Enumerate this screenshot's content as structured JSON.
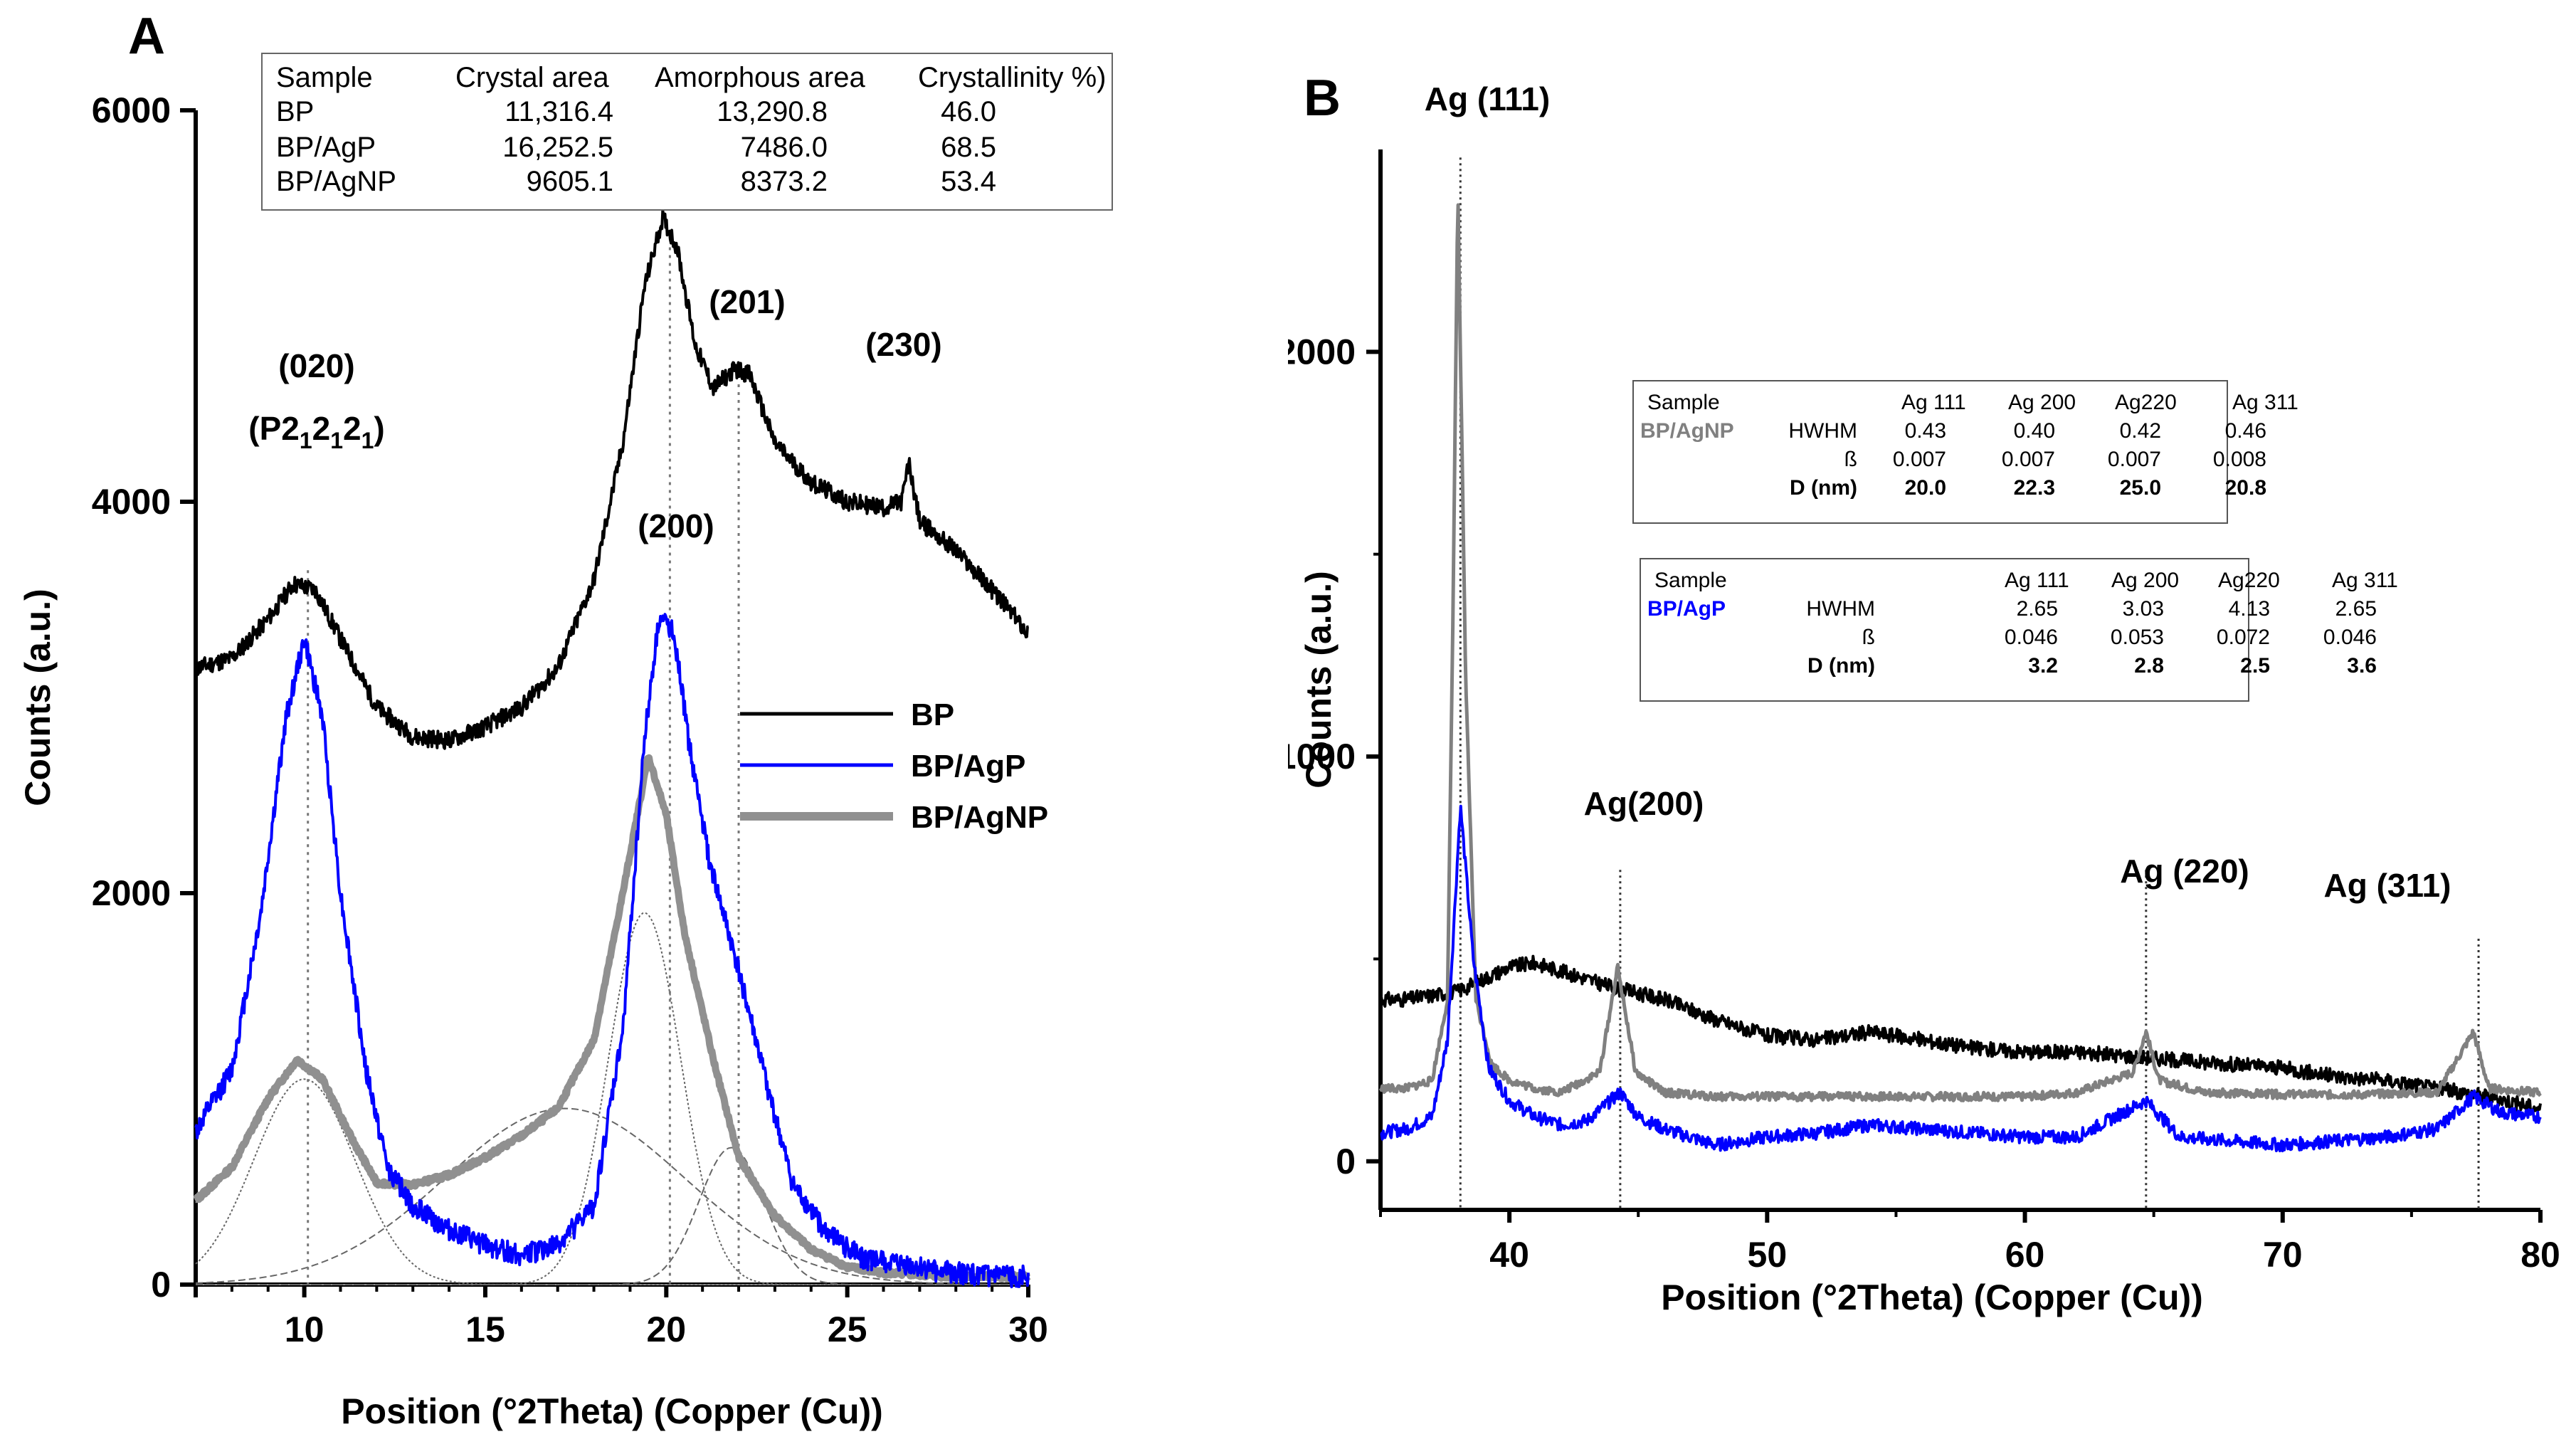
{
  "chart_data": [
    {
      "type": "line",
      "panel": "A",
      "xlabel": "Position (°2Theta) (Copper (Cu))",
      "ylabel": "Counts (a.u.)",
      "xlim": [
        7,
        30
      ],
      "ylim": [
        0,
        6000
      ],
      "x_ticks": [
        "10",
        "15",
        "20",
        "25",
        "30"
      ],
      "y_ticks": [
        "0",
        "2000",
        "4000",
        "6000"
      ],
      "series": [
        {
          "name": "BP",
          "color": "#000000",
          "x": [
            7,
            8,
            9,
            9.7,
            10.3,
            11,
            12,
            13,
            14,
            15,
            16,
            17,
            18,
            18.8,
            19.4,
            19.9,
            20.3,
            20.8,
            21.3,
            21.9,
            22.3,
            23,
            24,
            25,
            26,
            26.5,
            26.7,
            27,
            28,
            29,
            30
          ],
          "y": [
            3150,
            3200,
            3400,
            3580,
            3550,
            3300,
            2950,
            2800,
            2780,
            2850,
            2950,
            3150,
            3600,
            4300,
            5100,
            5450,
            5300,
            4800,
            4580,
            4680,
            4650,
            4300,
            4100,
            4000,
            3970,
            4000,
            4200,
            3900,
            3750,
            3550,
            3330
          ]
        },
        {
          "name": "BP/AgP",
          "color": "#0000ff",
          "x": [
            7,
            8,
            8.8,
            9.5,
            10,
            10.5,
            11,
            11.7,
            12.3,
            13,
            14,
            15,
            16,
            17,
            18,
            18.8,
            19.4,
            19.8,
            20.2,
            20.6,
            21.2,
            22,
            22.8,
            23.5,
            24.5,
            25.5,
            26.5,
            27.5,
            28.5,
            30
          ],
          "y": [
            780,
            1100,
            1900,
            2900,
            3300,
            2900,
            2000,
            1100,
            600,
            400,
            280,
            200,
            150,
            200,
            400,
            1300,
            2800,
            3400,
            3350,
            2800,
            2150,
            1600,
            1000,
            500,
            250,
            130,
            100,
            70,
            50,
            40
          ]
        },
        {
          "name": "BP/AgNP",
          "color": "#909090",
          "x": [
            7,
            8,
            9,
            9.8,
            10.5,
            11.3,
            12,
            13,
            14,
            15,
            16,
            17,
            18,
            18.8,
            19.5,
            20,
            20.5,
            21.3,
            22,
            23,
            24,
            25,
            26,
            27,
            28,
            30
          ],
          "y": [
            430,
            600,
            950,
            1150,
            1050,
            750,
            520,
            510,
            560,
            650,
            760,
            900,
            1250,
            2000,
            2700,
            2400,
            1800,
            1150,
            650,
            350,
            180,
            90,
            60,
            50,
            40,
            40
          ]
        }
      ],
      "fit_peaks": [
        {
          "center": 10,
          "amplitude": 1050,
          "width": 1.4
        },
        {
          "center": 17.2,
          "amplitude": 900,
          "width": 3.3
        },
        {
          "center": 19.4,
          "amplitude": 1900,
          "width": 1.0
        },
        {
          "center": 21.8,
          "amplitude": 700,
          "width": 0.9
        }
      ],
      "reference_lines_x": [
        10.1,
        20.1,
        22.0
      ],
      "annotations": [
        "(020)",
        "(201)",
        "(230)",
        "(200)"
      ],
      "annotation_subscript": {
        "prefix": "(P2",
        "sub": "1",
        "mid": "2",
        "suffix": ")"
      },
      "legend": {
        "position": "right",
        "entries": [
          "BP",
          "BP/AgP",
          "BP/AgNP"
        ]
      },
      "table": {
        "headers": [
          "Sample",
          "Crystal area",
          "Amorphous area",
          "Crystallinity %)"
        ],
        "rows": [
          [
            "BP",
            "11,316.4",
            "13,290.8",
            "46.0"
          ],
          [
            "BP/AgP",
            "16,252.5",
            "7486.0",
            "68.5"
          ],
          [
            "BP/AgNP",
            "9605.1",
            "8373.2",
            "53.4"
          ]
        ]
      }
    },
    {
      "type": "line",
      "panel": "B",
      "xlabel": "Position (°2Theta) (Copper (Cu))",
      "ylabel": "Counts (a.u.)",
      "xlim": [
        35,
        80
      ],
      "ylim": [
        -120,
        2500
      ],
      "x_ticks": [
        "40",
        "50",
        "60",
        "70",
        "80"
      ],
      "y_ticks": [
        "0",
        "1000",
        "2000"
      ],
      "series": [
        {
          "name": "BP",
          "color": "#000000",
          "x": [
            35,
            36,
            37,
            38,
            39,
            40,
            41,
            42,
            44,
            46,
            48,
            50,
            52,
            54,
            56,
            58,
            60,
            62,
            64,
            66,
            68,
            70,
            72,
            74,
            76,
            78,
            80
          ],
          "y": [
            400,
            400,
            410,
            420,
            450,
            480,
            490,
            470,
            430,
            400,
            350,
            310,
            300,
            320,
            300,
            280,
            270,
            270,
            260,
            250,
            240,
            230,
            210,
            200,
            180,
            160,
            130
          ]
        },
        {
          "name": "BP/AgP",
          "color": "#0000ff",
          "x": [
            35,
            36,
            37,
            37.6,
            38.1,
            38.6,
            39.2,
            40,
            41,
            42,
            43,
            44.3,
            45,
            46,
            48,
            50,
            52,
            54,
            56,
            58,
            60,
            62,
            64.7,
            66,
            68,
            70,
            72,
            74,
            76,
            77.4,
            78.5,
            80
          ],
          "y": [
            70,
            80,
            110,
            300,
            880,
            500,
            230,
            150,
            110,
            90,
            100,
            170,
            110,
            80,
            40,
            60,
            70,
            90,
            80,
            70,
            60,
            60,
            150,
            60,
            50,
            40,
            50,
            60,
            80,
            160,
            120,
            110
          ]
        },
        {
          "name": "BP/AgNP",
          "color": "#808080",
          "x": [
            35,
            36,
            37,
            37.6,
            37.8,
            38.0,
            38.3,
            38.7,
            39.3,
            40,
            41,
            42,
            43.5,
            44.2,
            44.9,
            46,
            48,
            50,
            52,
            54,
            56,
            58,
            60,
            62,
            64.2,
            64.7,
            65.2,
            67,
            70,
            73,
            76,
            77.4,
            78,
            80
          ],
          "y": [
            180,
            180,
            200,
            400,
            1300,
            2400,
            1200,
            400,
            240,
            200,
            180,
            170,
            220,
            480,
            220,
            170,
            160,
            160,
            160,
            160,
            160,
            160,
            160,
            170,
            220,
            320,
            200,
            170,
            165,
            165,
            170,
            320,
            180,
            170
          ]
        }
      ],
      "reference_lines_x": [
        38.1,
        44.3,
        64.7,
        77.6
      ],
      "annotations": [
        "Ag (111)",
        "Ag(200)",
        "Ag (220)",
        "Ag (311)"
      ],
      "tables": [
        {
          "headers": [
            "Sample",
            "Ag 111",
            "Ag 200",
            "Ag220",
            "Ag 311"
          ],
          "sample": "BP/AgNP",
          "sample_color": "#808080",
          "rows": [
            {
              "label": "HWHM",
              "values": [
                "0.43",
                "0.40",
                "0.42",
                "0.46"
              ],
              "bold": false
            },
            {
              "label": "ß",
              "values": [
                "0.007",
                "0.007",
                "0.007",
                "0.008"
              ],
              "bold": false
            },
            {
              "label": "D (nm)",
              "values": [
                "20.0",
                "22.3",
                "25.0",
                "20.8"
              ],
              "bold": true
            }
          ]
        },
        {
          "headers": [
            "Sample",
            "Ag 111",
            "Ag 200",
            "Ag220",
            "Ag 311"
          ],
          "sample": "BP/AgP",
          "sample_color": "#0000ff",
          "rows": [
            {
              "label": "HWHM",
              "values": [
                "2.65",
                "3.03",
                "4.13",
                "2.65"
              ],
              "bold": false
            },
            {
              "label": "ß",
              "values": [
                "0.046",
                "0.053",
                "0.072",
                "0.046"
              ],
              "bold": false
            },
            {
              "label": "D (nm)",
              "values": [
                "3.2",
                "2.8",
                "2.5",
                "3.6"
              ],
              "bold": true
            }
          ]
        }
      ]
    }
  ]
}
